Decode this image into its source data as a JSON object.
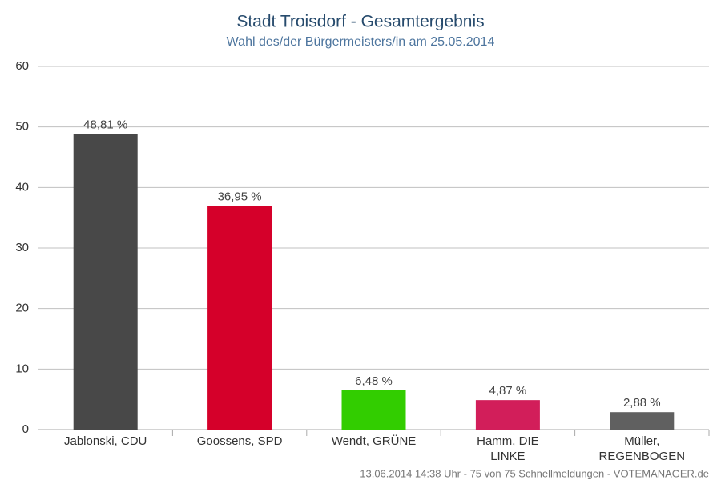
{
  "chart_data": {
    "type": "bar",
    "title": "Stadt Troisdorf - Gesamtergebnis",
    "subtitle": "Wahl des/der Bürgermeisters/in am 25.05.2014",
    "categories": [
      "Jablonski, CDU",
      "Goossens, SPD",
      "Wendt, GRÜNE",
      "Hamm, DIE LINKE",
      "Müller, REGENBOGEN"
    ],
    "values": [
      48.81,
      36.95,
      6.48,
      4.87,
      2.88
    ],
    "value_labels": [
      "48,81 %",
      "36,95 %",
      "6,48 %",
      "4,87 %",
      "2,88 %"
    ],
    "colors": [
      "#484848",
      "#d5002a",
      "#32cd00",
      "#d21e5a",
      "#606060"
    ],
    "ylim": [
      0,
      60
    ],
    "yticks": [
      0,
      10,
      20,
      30,
      40,
      50,
      60
    ],
    "grid": true,
    "footer": "13.06.2014 14:38 Uhr - 75 von 75 Schnellmeldungen - VOTEMANAGER.de"
  }
}
